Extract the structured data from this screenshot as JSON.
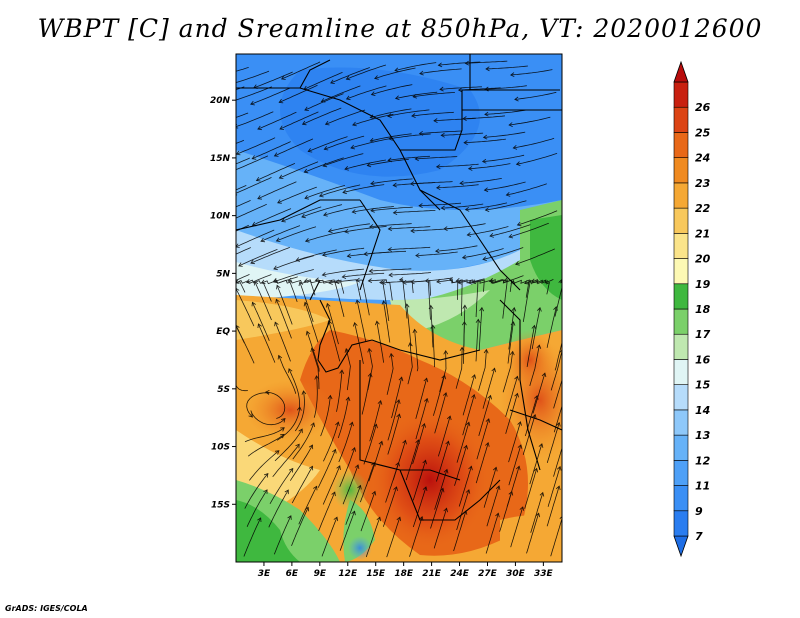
{
  "title": "WBPT [C] and Sreamline at 850hPa, VT: 2020012600",
  "credit": "GrADS: IGES/COLA",
  "map": {
    "lon_range": [
      0,
      35
    ],
    "lat_range": [
      -20,
      24
    ],
    "lat_ticks": [
      {
        "value": 20,
        "label": "20N"
      },
      {
        "value": 15,
        "label": "15N"
      },
      {
        "value": 10,
        "label": "10N"
      },
      {
        "value": 5,
        "label": "5N"
      },
      {
        "value": 0,
        "label": "EQ"
      },
      {
        "value": -5,
        "label": "5S"
      },
      {
        "value": -10,
        "label": "10S"
      },
      {
        "value": -15,
        "label": "15S"
      }
    ],
    "lon_ticks": [
      {
        "value": 3,
        "label": "3E"
      },
      {
        "value": 6,
        "label": "6E"
      },
      {
        "value": 9,
        "label": "9E"
      },
      {
        "value": 12,
        "label": "12E"
      },
      {
        "value": 15,
        "label": "15E"
      },
      {
        "value": 18,
        "label": "18E"
      },
      {
        "value": 21,
        "label": "21E"
      },
      {
        "value": 24,
        "label": "24E"
      },
      {
        "value": 27,
        "label": "27E"
      },
      {
        "value": 30,
        "label": "30E"
      },
      {
        "value": 33,
        "label": "33E"
      }
    ]
  },
  "colorbar": {
    "entries": [
      {
        "label": "7",
        "color": "#1e6ee6"
      },
      {
        "label": "9",
        "color": "#2a7df0"
      },
      {
        "label": "11",
        "color": "#3a8ff5"
      },
      {
        "label": "12",
        "color": "#4ea0f7"
      },
      {
        "label": "13",
        "color": "#66b2f8"
      },
      {
        "label": "14",
        "color": "#8ec8fa"
      },
      {
        "label": "15",
        "color": "#b6dcfb"
      },
      {
        "label": "16",
        "color": "#e0f5f5"
      },
      {
        "label": "17",
        "color": "#bfe8b0"
      },
      {
        "label": "18",
        "color": "#7bd06a"
      },
      {
        "label": "19",
        "color": "#3fb83f"
      },
      {
        "label": "20",
        "color": "#fdf9b4"
      },
      {
        "label": "21",
        "color": "#fbe48a"
      },
      {
        "label": "22",
        "color": "#f8c85c"
      },
      {
        "label": "23",
        "color": "#f5a834"
      },
      {
        "label": "24",
        "color": "#f08a20"
      },
      {
        "label": "25",
        "color": "#e86818"
      },
      {
        "label": "26",
        "color": "#dc4414"
      },
      {
        "label": "",
        "color": "#c82010"
      },
      {
        "label": "",
        "color": "#b80c0c"
      }
    ]
  }
}
